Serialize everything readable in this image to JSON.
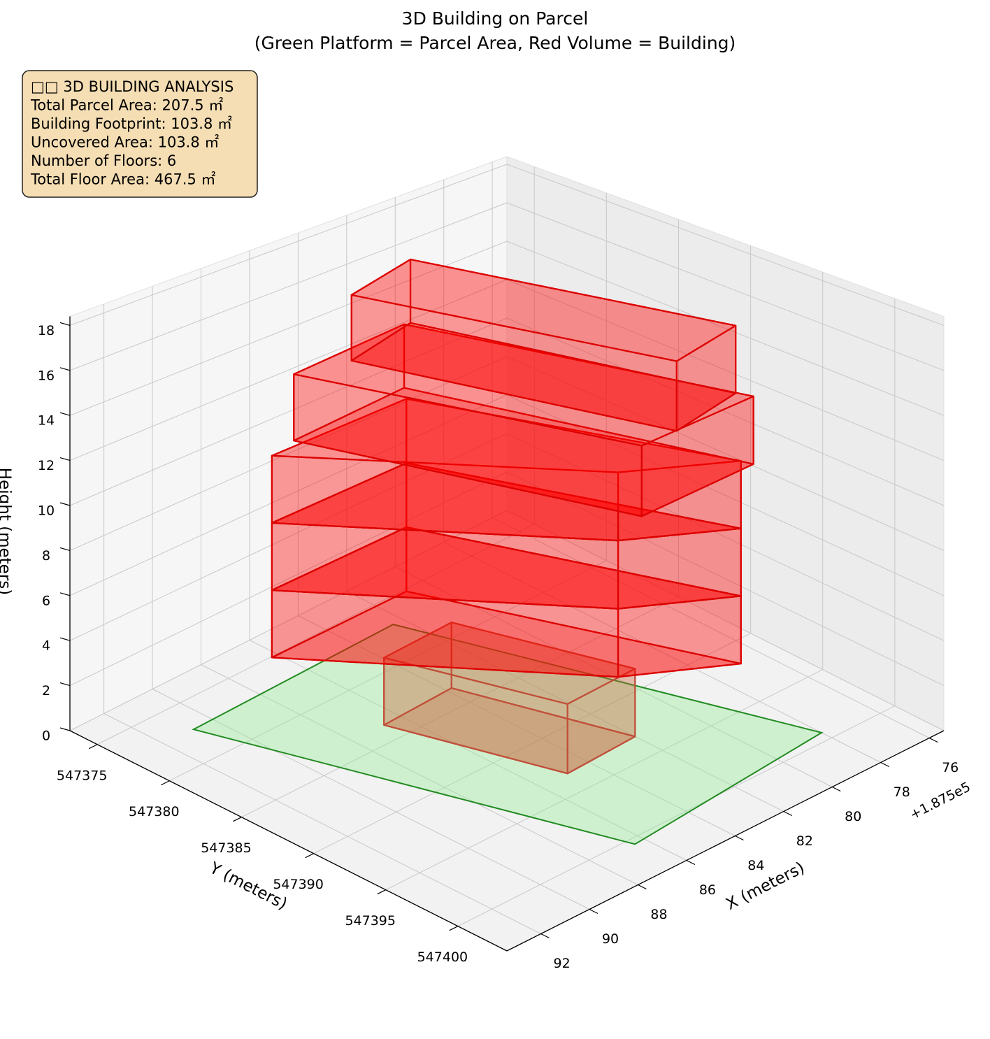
{
  "chart_data": {
    "type": "3d-building",
    "title": "3D Building on Parcel",
    "subtitle": "(Green Platform = Parcel Area, Red Volume = Building)",
    "info_box": [
      "□□ 3D BUILDING ANALYSIS",
      "Total Parcel Area: 207.5 ㎡",
      "Building Footprint: 103.8 ㎡",
      "Uncovered Area: 103.8 ㎡",
      "Number of Floors: 6",
      "Total Floor Area: 467.5 ㎡"
    ],
    "xlabel": "X (meters)",
    "ylabel": "Y (meters)",
    "zlabel": "Height (meters)",
    "x_offset_label": "+1.875e5",
    "xlim": [
      75.4,
      93.4
    ],
    "ylim": [
      547373.1,
      547403.4
    ],
    "zlim": [
      0,
      18.4
    ],
    "xticks": [
      76,
      78,
      80,
      82,
      84,
      86,
      88,
      90,
      92
    ],
    "yticks": [
      547375,
      547380,
      547385,
      547390,
      547395,
      547400
    ],
    "zticks": [
      0,
      2,
      4,
      6,
      8,
      10,
      12,
      14,
      16,
      18
    ],
    "grid": true,
    "parcel": {
      "color": "#90ee90",
      "edgecolor": "#228b22",
      "x": [
        90.8,
        82.4,
        78.0,
        86.4
      ],
      "y": [
        547377.3,
        547377.0,
        547399.3,
        547400.5
      ]
    },
    "volumes": [
      {
        "color": "#c8643c",
        "edgecolor": "#c0503a",
        "x": [
          86.7,
          84.9,
          82.0,
          83.8
        ],
        "y": [
          547383.6,
          547393.3,
          547393.1,
          547383.4
        ],
        "z": [
          0,
          3
        ]
      },
      {
        "color": "#ff0000",
        "edgecolor": "#dd0000",
        "x": [
          89.0,
          82.7,
          79.6,
          83.4
        ],
        "y": [
          547379.7,
          547393.1,
          547396.4,
          547379.6
        ],
        "z": [
          3,
          6
        ]
      },
      {
        "color": "#ff0000",
        "edgecolor": "#dd0000",
        "x": [
          89.0,
          82.7,
          79.6,
          83.4
        ],
        "y": [
          547379.7,
          547393.1,
          547396.4,
          547379.6
        ],
        "z": [
          6,
          9
        ]
      },
      {
        "color": "#ff0000",
        "edgecolor": "#dd0000",
        "x": [
          89.0,
          82.7,
          79.6,
          83.4
        ],
        "y": [
          547379.7,
          547393.1,
          547396.4,
          547379.6
        ],
        "z": [
          9,
          12
        ]
      },
      {
        "color": "#ff0000",
        "edgecolor": "#dd0000",
        "x": [
          87.8,
          84.4,
          79.5,
          82.9
        ],
        "y": [
          547379.2,
          547397.6,
          547397.1,
          547378.6
        ],
        "z": [
          12,
          15
        ]
      },
      {
        "color": "#ff0000",
        "edgecolor": "#dd0000",
        "x": [
          85.9,
          82.9,
          79.7,
          82.7
        ],
        "y": [
          547380.0,
          547397.5,
          547396.2,
          547378.7
        ],
        "z": [
          15,
          18
        ]
      }
    ]
  }
}
